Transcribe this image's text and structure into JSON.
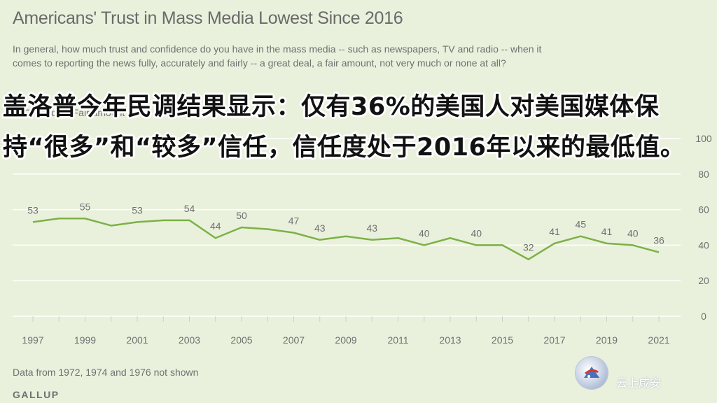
{
  "header": {
    "title": "Americans' Trust in Mass Media Lowest Since 2016",
    "question": "In general, how much trust and confidence do you have in the mass media -- such as newspapers, TV and radio -- when it comes to reporting the news fully, accurately and fairly -- a great deal, a fair amount, not very much or none at all?",
    "series_label": "% Great deal/Fair amount"
  },
  "overlay_caption": "盖洛普今年民调结果显示：仅有36%的美国人对美国媒体保持“很多”和“较多”信任，信任度处于2016年以来的最低值。",
  "footer": {
    "note": "Data from 1972, 1974 and 1976 not shown",
    "source": "GALLUP"
  },
  "watermark": {
    "text": "云上咸安"
  },
  "colors": {
    "line": "#7db146",
    "grid": "#ffffff",
    "text": "#707070",
    "background": "#e9f1dd"
  },
  "chart_data": {
    "type": "line",
    "title": "Americans' Trust in Mass Media Lowest Since 2016",
    "ylim": [
      0,
      100
    ],
    "yticks": [
      0,
      20,
      40,
      60,
      80,
      100
    ],
    "xticks": [
      1997,
      1999,
      2001,
      2003,
      2005,
      2007,
      2009,
      2011,
      2013,
      2015,
      2017,
      2019,
      2021
    ],
    "xlim": [
      1997,
      2021
    ],
    "series": [
      {
        "x": [
          1997,
          1998,
          1999,
          2000,
          2001,
          2002,
          2003,
          2004,
          2005,
          2006,
          2007,
          2008,
          2009,
          2010,
          2011,
          2012,
          2013,
          2014,
          2015,
          2016,
          2017,
          2018,
          2019,
          2020,
          2021
        ],
        "values": [
          53,
          55,
          55,
          51,
          53,
          54,
          54,
          44,
          50,
          49,
          47,
          43,
          45,
          43,
          44,
          40,
          44,
          40,
          40,
          32,
          41,
          45,
          41,
          40,
          36
        ],
        "labels_at": [
          1997,
          1999,
          2001,
          2003,
          2004,
          2005,
          2007,
          2008,
          2010,
          2012,
          2014,
          2016,
          2017,
          2018,
          2019,
          2020,
          2021
        ]
      }
    ],
    "grid": true,
    "y_axis_side": "right"
  }
}
